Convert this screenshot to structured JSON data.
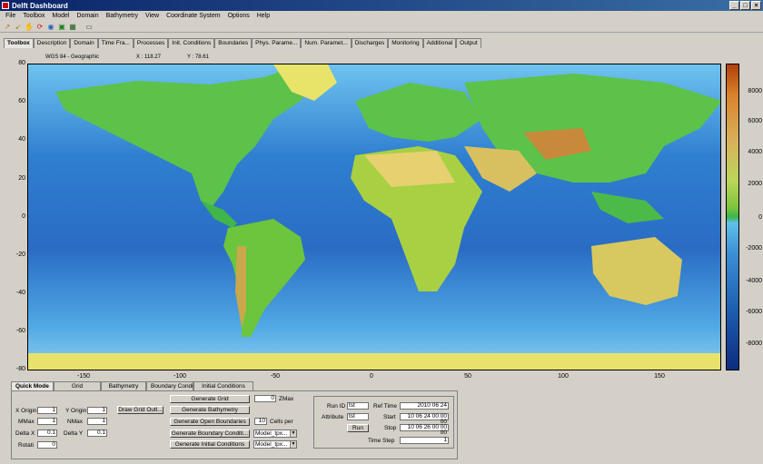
{
  "window": {
    "title": "Delft Dashboard",
    "controls": [
      "_",
      "□",
      "×"
    ]
  },
  "menu": [
    "File",
    "Toolbox",
    "Model",
    "Domain",
    "Bathymetry",
    "View",
    "Coordinate System",
    "Options",
    "Help"
  ],
  "toolbar_icons": [
    "zoom-in-icon",
    "zoom-out-icon",
    "pan-icon",
    "refresh-icon",
    "globe-icon",
    "layers-icon",
    "grid-icon",
    "screenshot-icon"
  ],
  "tabs": [
    "Toolbox",
    "Description",
    "Domain",
    "Time Fra...",
    "Processes",
    "Init. Conditions",
    "Boundaries",
    "Phys. Parame...",
    "Num. Paramet...",
    "Discharges",
    "Monitoring",
    "Additional",
    "Output"
  ],
  "coords": {
    "system": "WGS 84 - Geographic",
    "x": "X : 118.27",
    "y": "Y : 78.61"
  },
  "axes": {
    "y": [
      "80",
      "60",
      "40",
      "20",
      "0",
      "-20",
      "-40",
      "-60",
      "-80"
    ],
    "x": [
      "-150",
      "-100",
      "-50",
      "0",
      "50",
      "100",
      "150"
    ]
  },
  "colorbar": [
    "8000",
    "6000",
    "4000",
    "2000",
    "0",
    "-2000",
    "-4000",
    "-6000",
    "-8000"
  ],
  "panel_tabs": [
    "Quick Mode",
    "Grid",
    "Bathymetry",
    "Boundary Conditio...",
    "Initial Conditions"
  ],
  "grid": {
    "x_origin_label": "X Origin",
    "x_origin": "1",
    "y_origin_label": "Y Origin",
    "y_origin": "1",
    "mmax_label": "MMax",
    "mmax": "1",
    "nmax_label": "NMax",
    "nmax": "1",
    "delta_x_label": "Delta X",
    "delta_x": "0.1",
    "delta_y_label": "Delta Y",
    "delta_y": "0.1",
    "rotation_label": "Rotati",
    "rotation": "0",
    "draw_grid_button": "Draw Grid Outl..."
  },
  "actions": {
    "generate_grid": "Generate Grid",
    "generate_bathymetry": "Generate Bathymetry",
    "generate_open_boundaries": "Generate Open Boundaries",
    "generate_boundary_conditions": "Generate Boundary Conditi...",
    "generate_initial_conditions": "Generate Initial Conditions",
    "zmax_value": "0",
    "zmax_label": "ZMax",
    "cells_value": "10",
    "cells_label": "Cells per",
    "select1": "Model_tpx...",
    "select2": "Model_tpx..."
  },
  "run": {
    "run_id_label": "Run ID",
    "run_id": "tst",
    "attribute_label": "Attribute",
    "attribute": "tst",
    "run_button": "Run",
    "ref_time_label": "Ref Time",
    "ref_time": "2010 06 24",
    "start_label": "Start",
    "start": "10 06 24 00 00 00",
    "stop_label": "Stop",
    "stop": "10 06 26 00 00 00",
    "time_step_label": "Time Step",
    "time_step": "1"
  }
}
